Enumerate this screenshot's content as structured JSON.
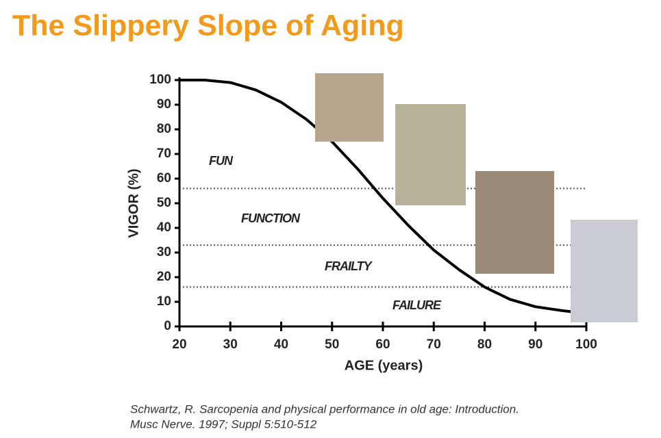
{
  "chart_data": {
    "type": "line",
    "title": "The Slippery Slope of Aging",
    "xlabel": "AGE (years)",
    "ylabel": "VIGOR (%)",
    "x": [
      20,
      25,
      30,
      35,
      40,
      45,
      50,
      55,
      60,
      65,
      70,
      75,
      80,
      85,
      90,
      95,
      97
    ],
    "series": [
      {
        "color": "#000000",
        "values": [
          100,
          100,
          99,
          96,
          91,
          84,
          75,
          64,
          52,
          41,
          31,
          23,
          16,
          11,
          8,
          6.5,
          6
        ]
      }
    ],
    "xlim": [
      20,
      100
    ],
    "ylim": [
      0,
      100
    ],
    "xticks": [
      20,
      30,
      40,
      50,
      60,
      70,
      80,
      90,
      100
    ],
    "yticks": [
      0,
      10,
      20,
      30,
      40,
      50,
      60,
      70,
      80,
      90,
      100
    ],
    "reference_lines": [
      56,
      33,
      16
    ],
    "zones": [
      "FUN",
      "FUNCTION",
      "FRAILTY",
      "FAILURE"
    ]
  },
  "footnote": [
    "Schwartz, R. Sarcopenia and physical performance in old age: Introduction.",
    "Musc Nerve. 1997; Suppl 5:510-512"
  ]
}
